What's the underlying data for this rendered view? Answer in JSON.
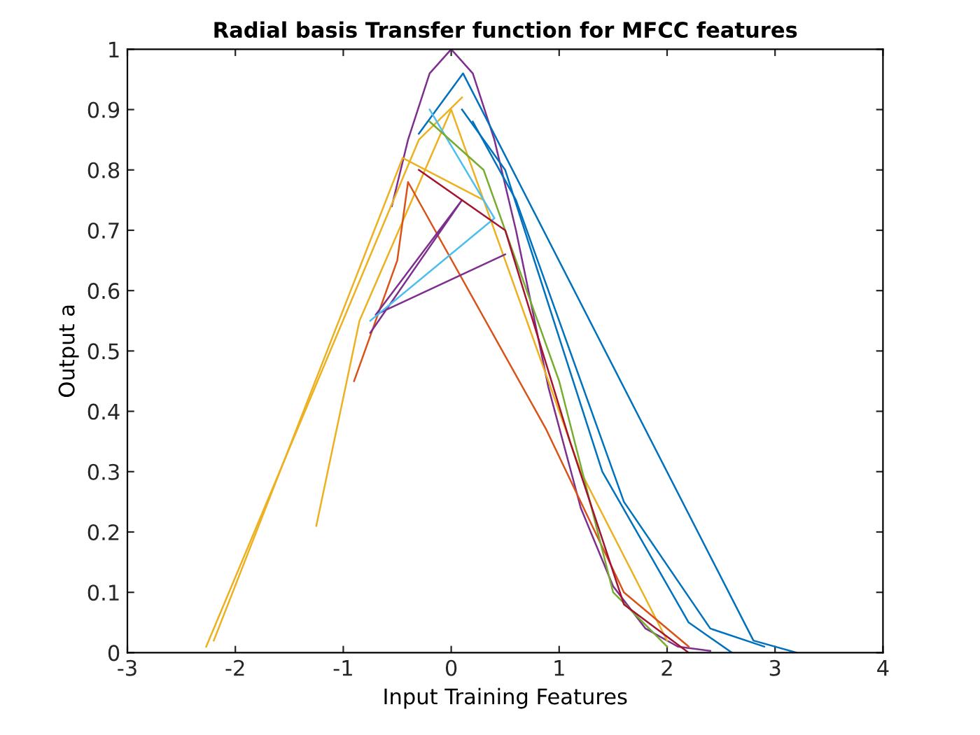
{
  "chart_data": {
    "type": "line",
    "title": "Radial basis Transfer function for MFCC features",
    "xlabel": "Input Training Features",
    "ylabel": "Output a",
    "xlim": [
      -3,
      4
    ],
    "ylim": [
      0,
      1
    ],
    "xticks": [
      -3,
      -2,
      -1,
      0,
      1,
      2,
      3,
      4
    ],
    "yticks": [
      0,
      0.1,
      0.2,
      0.3,
      0.4,
      0.5,
      0.6,
      0.7,
      0.8,
      0.9,
      1
    ],
    "grid": false,
    "legend": false,
    "marker": "none",
    "line_style": "solid",
    "series": [
      {
        "color": "#7e2f8e",
        "x": [
          -0.55,
          -0.4,
          -0.2,
          0,
          0.2,
          0.4,
          0.6,
          0.9,
          1.2,
          1.5,
          1.8,
          2.1,
          2.4
        ],
        "values": [
          0.74,
          0.85,
          0.96,
          1,
          0.96,
          0.85,
          0.7,
          0.44,
          0.24,
          0.11,
          0.04,
          0.01,
          0.003
        ]
      },
      {
        "color": "#0072bd",
        "x": [
          -0.3,
          0.11,
          2.8,
          3.2
        ],
        "values": [
          0.86,
          0.96,
          0.02,
          0
        ]
      },
      {
        "color": "#0072bd",
        "x": [
          0.1,
          0.5,
          1.4,
          2.2,
          2.6
        ],
        "values": [
          0.9,
          0.8,
          0.3,
          0.05,
          0
        ]
      },
      {
        "color": "#0072bd",
        "x": [
          0.2,
          0.6,
          1.6,
          2.4,
          2.9
        ],
        "values": [
          0.88,
          0.75,
          0.25,
          0.04,
          0.01
        ]
      },
      {
        "color": "#edb120",
        "x": [
          -2.27,
          -0.3,
          0.1
        ],
        "values": [
          0.01,
          0.85,
          0.92
        ]
      },
      {
        "color": "#edb120",
        "x": [
          -2.2,
          -0.45,
          0.3
        ],
        "values": [
          0.02,
          0.82,
          0.75
        ]
      },
      {
        "color": "#edb120",
        "x": [
          -1.25,
          -0.85,
          0,
          1.2,
          2.0
        ],
        "values": [
          0.21,
          0.55,
          0.9,
          0.3,
          0.02
        ]
      },
      {
        "color": "#d95319",
        "x": [
          -0.9,
          -0.5,
          -0.4,
          0.88,
          1.6,
          2.2
        ],
        "values": [
          0.45,
          0.65,
          0.78,
          0.37,
          0.1,
          0.01
        ]
      },
      {
        "color": "#7e2f8e",
        "x": [
          -0.75,
          0.1,
          -0.7,
          0.5
        ],
        "values": [
          0.53,
          0.75,
          0.56,
          0.66
        ]
      },
      {
        "color": "#4dbeee",
        "x": [
          -0.75,
          0.4,
          -0.2
        ],
        "values": [
          0.55,
          0.72,
          0.9
        ]
      },
      {
        "color": "#77ac30",
        "x": [
          -0.2,
          0.3,
          1.0,
          1.5,
          2.0
        ],
        "values": [
          0.88,
          0.8,
          0.45,
          0.1,
          0.01
        ]
      },
      {
        "color": "#a2142f",
        "x": [
          -0.3,
          0.5,
          1.1,
          1.6,
          2.2
        ],
        "values": [
          0.8,
          0.7,
          0.35,
          0.08,
          0
        ]
      }
    ]
  }
}
